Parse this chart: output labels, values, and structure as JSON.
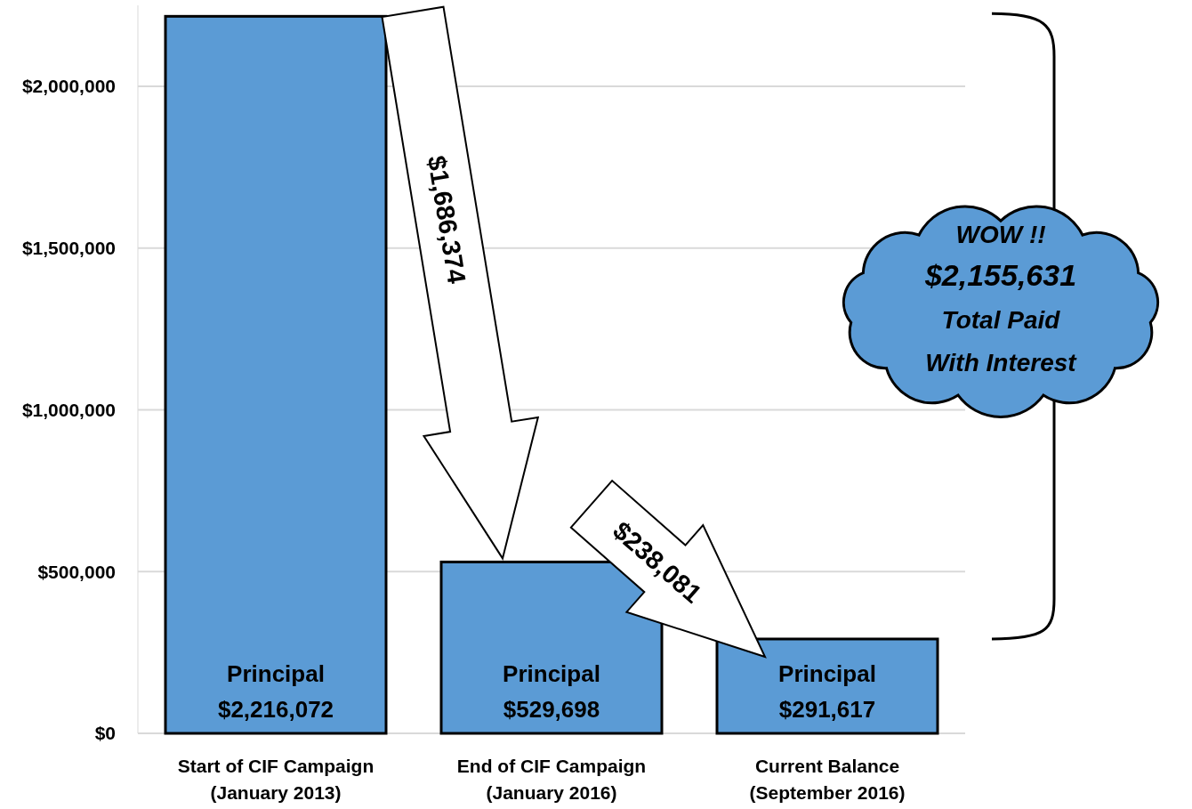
{
  "chart_data": {
    "type": "bar",
    "categories": [
      "Start of CIF Campaign\n(January 2013)",
      "End of CIF Campaign\n(January 2016)",
      "Current Balance\n(September 2016)"
    ],
    "values": [
      2216072,
      529698,
      291617
    ],
    "value_labels": [
      "Principal\n$2,216,072",
      "Principal\n$529,698",
      "Principal\n$291,617"
    ],
    "color": "#5b9bd5",
    "ylim": [
      0,
      2250000
    ],
    "yticks": [
      {
        "value": 0,
        "label": "$0"
      },
      {
        "value": 500000,
        "label": "$500,000"
      },
      {
        "value": 1000000,
        "label": "$1,000,000"
      },
      {
        "value": 1500000,
        "label": "$1,500,000"
      },
      {
        "value": 2000000,
        "label": "$2,000,000"
      }
    ],
    "grid": "y",
    "annotations": [
      "$1,686,374",
      "$238,081",
      "WOW !!\n$2,155,631\nTotal Paid\nWith Interest"
    ]
  }
}
